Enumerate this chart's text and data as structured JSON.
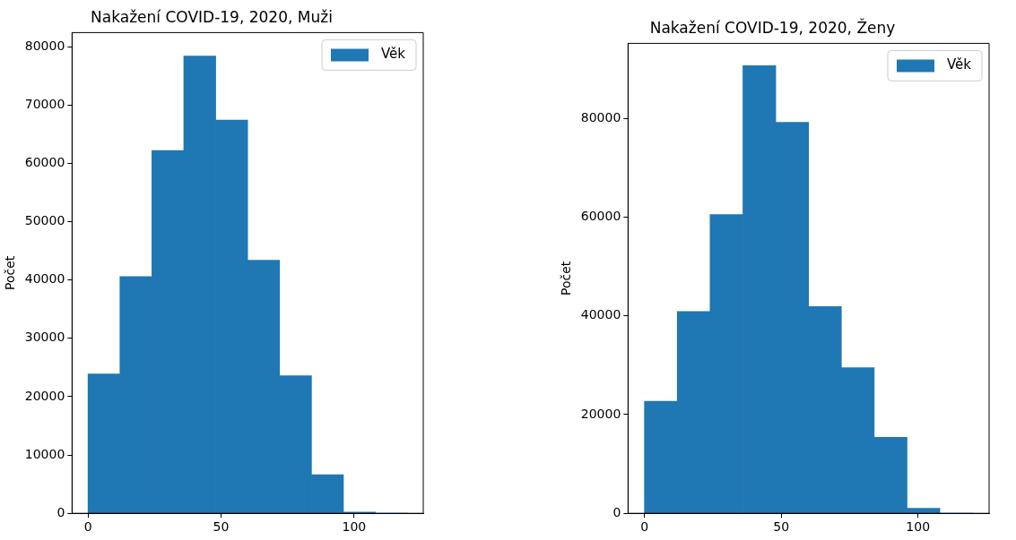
{
  "chart_data": [
    {
      "type": "histogram",
      "title": "Nakažení COVID-19, 2020, Muži",
      "ylabel": "Počet",
      "bins": [
        0,
        12,
        24,
        36,
        48,
        60,
        72,
        84,
        96,
        108,
        120
      ],
      "series": [
        {
          "name": "Věk",
          "color": "#1f77b4",
          "values": [
            23900,
            40600,
            62200,
            78400,
            67400,
            43400,
            23600,
            6600,
            200,
            0
          ]
        }
      ],
      "xlim": [
        -6,
        126
      ],
      "xticks": [
        0,
        50,
        100
      ],
      "ylim": [
        0,
        82400
      ],
      "yticks": [
        0,
        10000,
        20000,
        30000,
        40000,
        50000,
        60000,
        70000,
        80000
      ],
      "grid": false,
      "legend": "top right"
    },
    {
      "type": "histogram",
      "title": "Nakažení COVID-19, 2020, Ženy",
      "ylabel": "Počet",
      "bins": [
        0,
        12,
        24,
        36,
        48,
        60,
        72,
        84,
        96,
        108,
        120
      ],
      "series": [
        {
          "name": "Věk",
          "color": "#1f77b4",
          "values": [
            22700,
            40900,
            60500,
            90700,
            79200,
            41900,
            29500,
            15400,
            1000,
            0
          ]
        }
      ],
      "xlim": [
        -6,
        126
      ],
      "xticks": [
        0,
        50,
        100
      ],
      "ylim": [
        0,
        95200
      ],
      "yticks": [
        0,
        20000,
        40000,
        60000,
        80000
      ],
      "grid": false,
      "legend": "top right"
    }
  ]
}
